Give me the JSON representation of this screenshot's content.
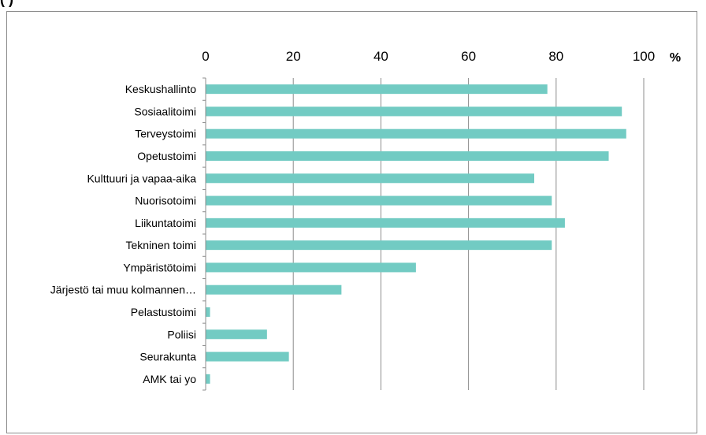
{
  "header_fragment": "(                )",
  "chart_data": {
    "type": "bar",
    "orientation": "horizontal",
    "categories": [
      "Keskushallinto",
      "Sosiaalitoimi",
      "Terveystoimi",
      "Opetustoimi",
      "Kulttuuri ja vapaa-aika",
      "Nuorisotoimi",
      "Liikuntatoimi",
      "Tekninen toimi",
      "Ympäristötoimi",
      "Järjestö tai muu kolmannen…",
      "Pelastustoimi",
      "Poliisi",
      "Seurakunta",
      "AMK tai yo"
    ],
    "values": [
      78,
      95,
      96,
      92,
      75,
      79,
      82,
      79,
      48,
      31,
      1,
      14,
      19,
      1
    ],
    "xlim": [
      0,
      100
    ],
    "xticks": [
      "0",
      "20",
      "40",
      "60",
      "80",
      "100"
    ],
    "xunit": "%",
    "axis_position": "top",
    "grid": true,
    "bar_color": "#72cbc3",
    "grid_color": "#8c8c8c"
  }
}
